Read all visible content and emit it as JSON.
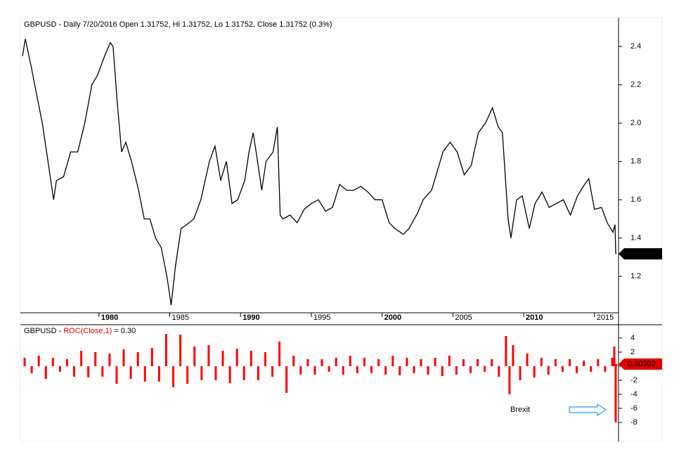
{
  "chart_data": [
    {
      "type": "line",
      "title": "GBPUSD - Daily 7/20/2016 Open 1.31752, Hi 1.31752, Lo 1.31752, Close 1.31752 (0.3%)",
      "color": "#000000",
      "x": [
        1974.6,
        1974.8,
        1975.2,
        1975.6,
        1976.0,
        1976.4,
        1976.8,
        1977.0,
        1977.5,
        1978.0,
        1978.5,
        1979.0,
        1979.5,
        1979.9,
        1980.4,
        1980.8,
        1981.0,
        1981.3,
        1981.6,
        1981.9,
        1982.3,
        1982.8,
        1983.2,
        1983.6,
        1984.0,
        1984.4,
        1984.8,
        1985.1,
        1985.4,
        1985.8,
        1986.2,
        1986.7,
        1987.2,
        1987.8,
        1988.2,
        1988.6,
        1989.0,
        1989.4,
        1989.8,
        1990.3,
        1990.6,
        1990.9,
        1991.2,
        1991.5,
        1991.8,
        1992.3,
        1992.6,
        1992.8,
        1993.0,
        1993.5,
        1994.0,
        1994.5,
        1995.0,
        1995.5,
        1996.0,
        1996.5,
        1997.0,
        1997.5,
        1998.0,
        1998.5,
        1999.0,
        1999.5,
        2000.0,
        2000.5,
        2000.9,
        2001.5,
        2001.9,
        2002.5,
        2002.9,
        2003.5,
        2003.9,
        2004.3,
        2004.8,
        2005.3,
        2005.8,
        2006.3,
        2006.8,
        2007.3,
        2007.8,
        2008.2,
        2008.5,
        2008.9,
        2009.1,
        2009.5,
        2009.9,
        2010.4,
        2010.8,
        2011.3,
        2011.8,
        2012.3,
        2012.8,
        2013.3,
        2013.8,
        2014.3,
        2014.6,
        2015.0,
        2015.5,
        2015.9,
        2016.3,
        2016.45,
        2016.5,
        2016.55
      ],
      "values": [
        2.35,
        2.44,
        2.3,
        2.15,
        2.0,
        1.8,
        1.6,
        1.7,
        1.72,
        1.85,
        1.85,
        2.0,
        2.2,
        2.25,
        2.35,
        2.42,
        2.4,
        2.1,
        1.85,
        1.9,
        1.8,
        1.65,
        1.5,
        1.5,
        1.4,
        1.35,
        1.2,
        1.05,
        1.25,
        1.45,
        1.47,
        1.5,
        1.6,
        1.8,
        1.88,
        1.7,
        1.8,
        1.58,
        1.6,
        1.7,
        1.85,
        1.95,
        1.8,
        1.65,
        1.8,
        1.85,
        1.98,
        1.52,
        1.5,
        1.52,
        1.48,
        1.55,
        1.58,
        1.6,
        1.54,
        1.56,
        1.68,
        1.65,
        1.65,
        1.67,
        1.64,
        1.6,
        1.6,
        1.48,
        1.45,
        1.42,
        1.45,
        1.53,
        1.6,
        1.65,
        1.75,
        1.85,
        1.9,
        1.85,
        1.73,
        1.78,
        1.95,
        2.0,
        2.08,
        1.98,
        1.95,
        1.5,
        1.4,
        1.6,
        1.62,
        1.45,
        1.58,
        1.64,
        1.56,
        1.58,
        1.6,
        1.52,
        1.62,
        1.68,
        1.71,
        1.55,
        1.56,
        1.48,
        1.43,
        1.47,
        1.32,
        1.31752
      ],
      "xlim": [
        1974.6,
        2016.6
      ],
      "xticks": [
        1980,
        1985,
        1990,
        1995,
        2000,
        2005,
        2010,
        2015
      ],
      "ylim": [
        1.01,
        2.54
      ],
      "yticks": [
        {
          "value": 1.2,
          "label": "1.2"
        },
        {
          "value": 1.4,
          "label": "1.4"
        },
        {
          "value": 1.6,
          "label": "1.6"
        },
        {
          "value": 1.8,
          "label": "1.8"
        },
        {
          "value": 2.0,
          "label": "2.0"
        },
        {
          "value": 2.2,
          "label": "2.2"
        },
        {
          "value": 2.4,
          "label": "2.4"
        }
      ]
    },
    {
      "type": "bar",
      "title": "GBPUSD - ",
      "indicator": "ROC(Close,1)",
      "title_suffix": " = 0.30",
      "color": "#ff0000",
      "annotation": "Brexit",
      "annotation_color": "#1ea0e0",
      "x": [
        1974.75,
        1975.25,
        1975.75,
        1976.25,
        1976.75,
        1977.25,
        1977.75,
        1978.25,
        1978.75,
        1979.25,
        1979.75,
        1980.25,
        1980.75,
        1981.25,
        1981.75,
        1982.25,
        1982.75,
        1983.25,
        1983.75,
        1984.25,
        1984.75,
        1985.25,
        1985.75,
        1986.25,
        1986.75,
        1987.25,
        1987.75,
        1988.25,
        1988.75,
        1989.25,
        1989.75,
        1990.25,
        1990.75,
        1991.25,
        1991.75,
        1992.25,
        1992.75,
        1993.25,
        1993.75,
        1994.25,
        1994.75,
        1995.25,
        1995.75,
        1996.25,
        1996.75,
        1997.25,
        1997.75,
        1998.25,
        1998.75,
        1999.25,
        1999.75,
        2000.25,
        2000.75,
        2001.25,
        2001.75,
        2002.25,
        2002.75,
        2003.25,
        2003.75,
        2004.25,
        2004.75,
        2005.25,
        2005.75,
        2006.25,
        2006.75,
        2007.25,
        2007.75,
        2008.25,
        2008.75,
        2009.0,
        2009.25,
        2009.75,
        2010.25,
        2010.75,
        2011.25,
        2011.75,
        2012.25,
        2012.75,
        2013.25,
        2013.75,
        2014.25,
        2014.75,
        2015.25,
        2015.75,
        2016.25,
        2016.4,
        2016.5,
        2016.55
      ],
      "values": [
        1.2,
        -1.0,
        1.5,
        -1.8,
        1.2,
        -0.8,
        1.0,
        -1.5,
        2.2,
        -1.6,
        2.0,
        -1.5,
        1.8,
        -2.5,
        2.4,
        -1.8,
        2.0,
        -2.2,
        2.6,
        -2.2,
        4.6,
        -3.0,
        4.5,
        -2.5,
        2.8,
        -2.0,
        3.0,
        -2.0,
        2.2,
        -2.4,
        2.5,
        -2.0,
        2.2,
        -2.0,
        2.0,
        -1.5,
        3.5,
        -3.8,
        1.5,
        -1.2,
        1.0,
        -1.2,
        1.0,
        -0.8,
        1.2,
        -1.2,
        1.5,
        -1.0,
        1.2,
        -1.0,
        1.0,
        -1.2,
        1.5,
        -1.3,
        1.2,
        -1.0,
        1.0,
        -1.2,
        1.2,
        -1.4,
        1.5,
        -1.2,
        1.0,
        -1.0,
        1.0,
        -0.8,
        1.0,
        -1.5,
        4.3,
        -4.0,
        3.0,
        -2.0,
        1.8,
        -1.6,
        1.2,
        -1.2,
        1.0,
        -0.8,
        1.0,
        -1.0,
        0.8,
        -0.8,
        1.0,
        -0.8,
        1.2,
        2.8,
        -8.0,
        0.30302
      ],
      "xlim": [
        1974.6,
        2016.6
      ],
      "ylim": [
        -8.7,
        5.7
      ],
      "yticks": [
        4,
        2,
        0,
        -2,
        -4,
        -6,
        -8
      ]
    }
  ]
}
